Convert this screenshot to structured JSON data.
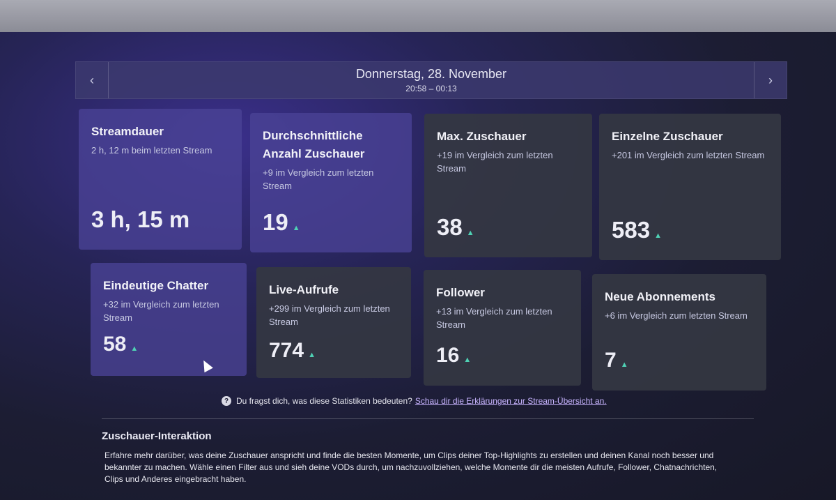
{
  "date_nav": {
    "prev_icon": "‹",
    "next_icon": "›",
    "title": "Donnerstag, 28. November",
    "time_range": "20:58 – 00:13"
  },
  "cards": [
    {
      "title": "Streamdauer",
      "subtitle": "2 h, 12 m beim letzten Stream",
      "value": "3 h, 15 m",
      "trend": ""
    },
    {
      "title": "Durchschnittliche Anzahl Zuschauer",
      "subtitle": "+9 im Vergleich zum letzten Stream",
      "value": "19",
      "trend": "up"
    },
    {
      "title": "Max. Zuschauer",
      "subtitle": "+19 im Vergleich zum letzten Stream",
      "value": "38",
      "trend": "up"
    },
    {
      "title": "Einzelne Zuschauer",
      "subtitle": "+201 im Vergleich zum letzten Stream",
      "value": "583",
      "trend": "up"
    },
    {
      "title": "Eindeutige Chatter",
      "subtitle": "+32 im Vergleich zum letzten Stream",
      "value": "58",
      "trend": "up"
    },
    {
      "title": "Live-Aufrufe",
      "subtitle": "+299 im Vergleich zum letzten Stream",
      "value": "774",
      "trend": "up"
    },
    {
      "title": "Follower",
      "subtitle": "+13 im Vergleich zum letzten Stream",
      "value": "16",
      "trend": "up"
    },
    {
      "title": "Neue Abonnements",
      "subtitle": "+6 im Vergleich zum letzten Stream",
      "value": "7",
      "trend": "up"
    }
  ],
  "trend_glyph": "▲",
  "help": {
    "icon": "?",
    "question": "Du fragst dich, was diese Statistiken bedeuten?",
    "link": "Schau dir die Erklärungen zur Stream-Übersicht an."
  },
  "section": {
    "title": "Zuschauer-Interaktion",
    "description": "Erfahre mehr darüber, was deine Zuschauer anspricht und finde die besten Momente, um Clips deiner Top-Highlights zu erstellen und deinen Kanal noch besser und bekannter zu machen. Wähle einen Filter aus und sieh deine VODs durch, um nachzuvollziehen, welche Momente dir die meisten Aufrufe, Follower, Chatnachrichten, Clips und Anderes eingebracht haben."
  },
  "colors": {
    "background": "#1c1d33",
    "card": "#343742",
    "accent_glow": "#4a4296",
    "trend_up": "#4fd1b4",
    "link": "#c8b4ff"
  }
}
